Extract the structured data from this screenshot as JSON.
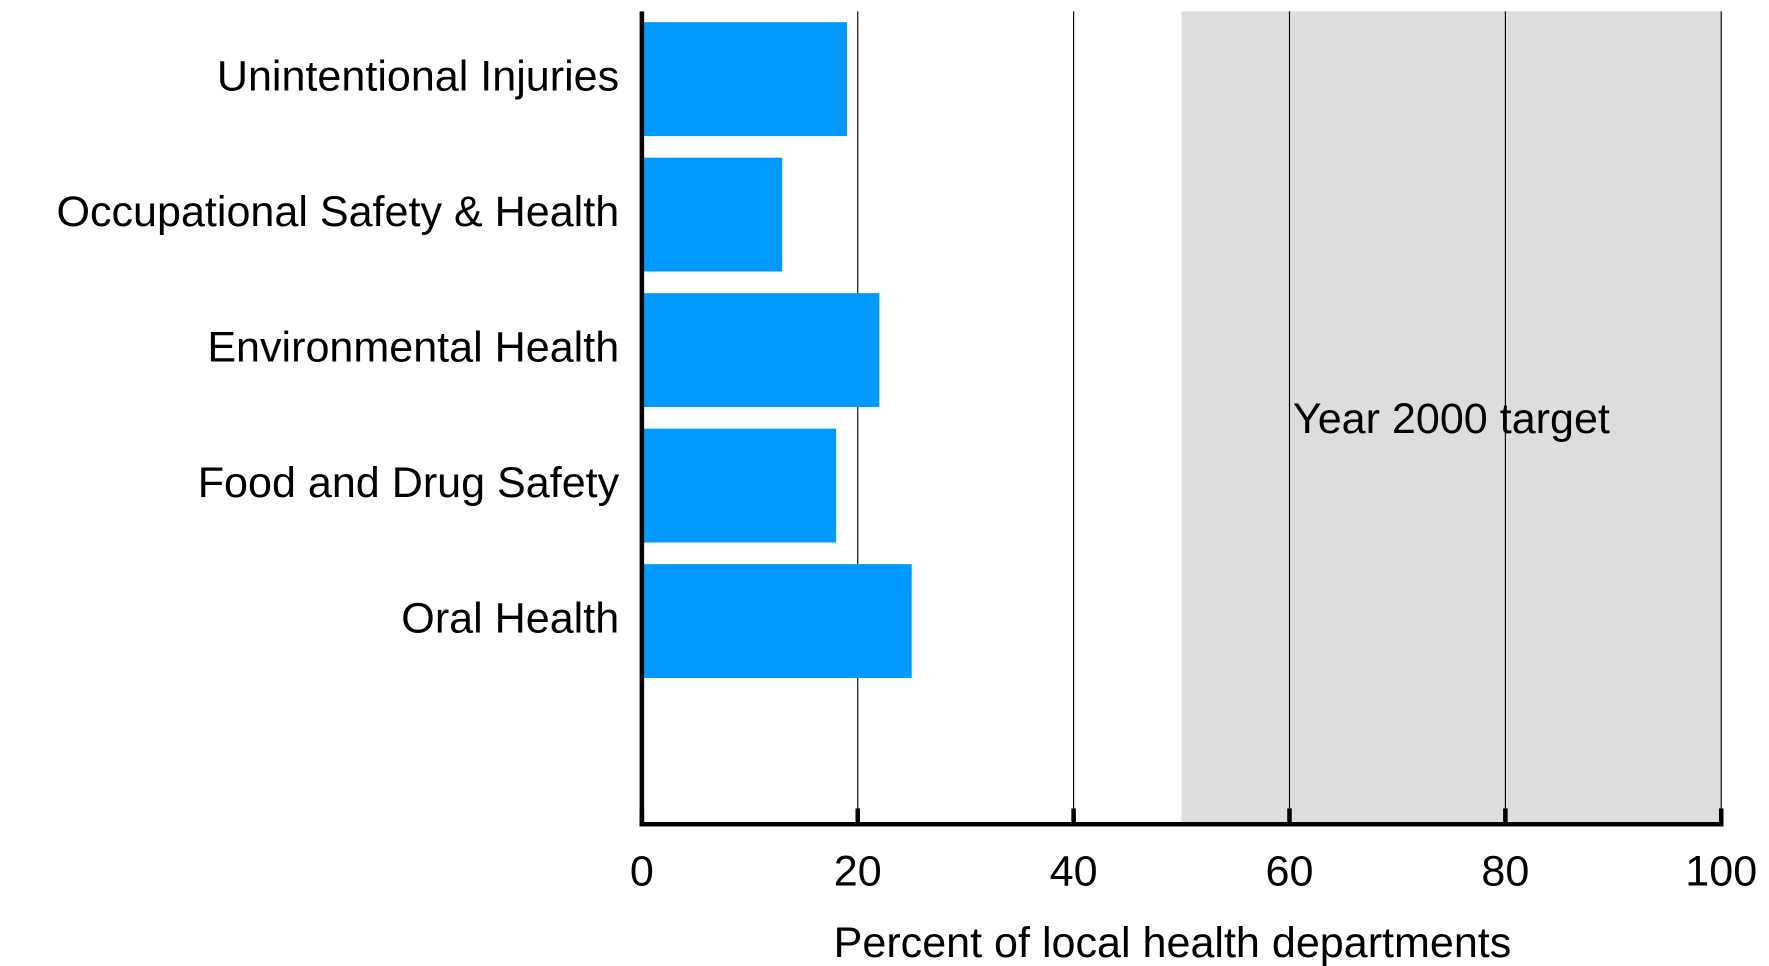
{
  "chart_data": {
    "type": "barh",
    "categories": [
      "Unintentional Injuries",
      "Occupational Safety & Health",
      "Environmental Health",
      "Food and Drug Safety",
      "Oral Health"
    ],
    "values": [
      19,
      13,
      22,
      18,
      25
    ],
    "color": "#0099ff",
    "xlabel": "Percent of local health departments",
    "xlim": [
      0,
      100
    ],
    "xticks": [
      0,
      20,
      40,
      60,
      80,
      100
    ],
    "grid": true,
    "target": {
      "label": "Year 2000 target",
      "range": [
        50,
        100
      ],
      "color": "#dddddd"
    }
  }
}
